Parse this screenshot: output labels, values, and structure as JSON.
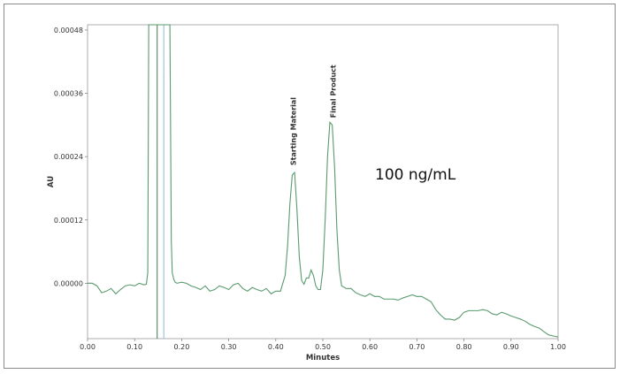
{
  "chart_data": {
    "type": "line",
    "title": "",
    "xlabel": "Minutes",
    "ylabel": "AU",
    "xlim": [
      0.0,
      1.0
    ],
    "ylim": [
      -0.000105,
      0.00049
    ],
    "x_ticks": [
      "0.00",
      "0.10",
      "0.20",
      "0.30",
      "0.40",
      "0.50",
      "0.60",
      "0.70",
      "0.80",
      "0.90",
      "1.00"
    ],
    "y_ticks": [
      {
        "value": 0.0,
        "label": "0.00000"
      },
      {
        "value": 0.00012,
        "label": "0.00012"
      },
      {
        "value": 0.00024,
        "label": "0.00024"
      },
      {
        "value": 0.00036,
        "label": "0.00036"
      },
      {
        "value": 0.00048,
        "label": "0.00048"
      }
    ],
    "annotation": "100 ng/mL",
    "peak_labels": [
      {
        "text": "Starting Material",
        "x": 0.437,
        "y": 0.000215
      },
      {
        "text": "Final Product",
        "x": 0.522,
        "y": 0.000305
      }
    ],
    "line_color": "#5a9a6e",
    "markers": [
      {
        "x": 0.148,
        "color": "#3b7a4d"
      },
      {
        "x": 0.162,
        "color": "#8fb7d2"
      }
    ],
    "series": [
      {
        "x": [
          0.0,
          0.01,
          0.02,
          0.03,
          0.04,
          0.05,
          0.06,
          0.07,
          0.08,
          0.09,
          0.1,
          0.11,
          0.12,
          0.125,
          0.128,
          0.13,
          0.132,
          0.17,
          0.175,
          0.178,
          0.18,
          0.183,
          0.186,
          0.19,
          0.2,
          0.21,
          0.22,
          0.23,
          0.24,
          0.25,
          0.26,
          0.27,
          0.28,
          0.29,
          0.3,
          0.31,
          0.32,
          0.33,
          0.34,
          0.35,
          0.36,
          0.37,
          0.38,
          0.39,
          0.4,
          0.41,
          0.42,
          0.425,
          0.43,
          0.435,
          0.44,
          0.445,
          0.45,
          0.455,
          0.46,
          0.465,
          0.47,
          0.475,
          0.48,
          0.485,
          0.49,
          0.495,
          0.5,
          0.505,
          0.51,
          0.515,
          0.52,
          0.525,
          0.53,
          0.535,
          0.54,
          0.55,
          0.56,
          0.57,
          0.58,
          0.59,
          0.6,
          0.61,
          0.62,
          0.63,
          0.64,
          0.65,
          0.66,
          0.67,
          0.68,
          0.69,
          0.7,
          0.71,
          0.72,
          0.73,
          0.74,
          0.75,
          0.76,
          0.77,
          0.78,
          0.79,
          0.8,
          0.81,
          0.82,
          0.83,
          0.84,
          0.85,
          0.86,
          0.87,
          0.88,
          0.89,
          0.9,
          0.91,
          0.92,
          0.93,
          0.94,
          0.95,
          0.96,
          0.97,
          0.98,
          0.99,
          1.0
        ],
        "y": [
          0.0,
          0.0,
          -5e-06,
          -1.8e-05,
          -1.5e-05,
          -1e-05,
          -2e-05,
          -1.2e-05,
          -5e-06,
          -3e-06,
          -5e-06,
          0.0,
          -3e-06,
          -2e-06,
          2e-05,
          0.00049,
          0.00049,
          0.00049,
          0.00049,
          8e-05,
          2e-05,
          8e-06,
          2e-06,
          0.0,
          2e-06,
          0.0,
          -5e-06,
          -8e-06,
          -1.2e-05,
          -5e-06,
          -1.5e-05,
          -1.2e-05,
          -5e-06,
          -8e-06,
          -1.2e-05,
          -3e-06,
          0.0,
          -1e-05,
          -1.5e-05,
          -8e-06,
          -1.2e-05,
          -1.5e-05,
          -1e-05,
          -2e-05,
          -1.5e-05,
          -1.5e-05,
          1.5e-05,
          7e-05,
          0.00015,
          0.000205,
          0.00021,
          0.00014,
          5e-05,
          5e-06,
          -2e-06,
          1e-05,
          1e-05,
          2.5e-05,
          1.5e-05,
          -5e-06,
          -1.2e-05,
          -1.2e-05,
          2.5e-05,
          0.00012,
          0.00024,
          0.000305,
          0.0003,
          0.00022,
          0.0001,
          2.5e-05,
          -5e-06,
          -1e-05,
          -1e-05,
          -1.8e-05,
          -2.2e-05,
          -2.5e-05,
          -2e-05,
          -2.5e-05,
          -2.5e-05,
          -3e-05,
          -3e-05,
          -3e-05,
          -3.2e-05,
          -2.8e-05,
          -2.5e-05,
          -2.2e-05,
          -2.5e-05,
          -2.5e-05,
          -3e-05,
          -3.5e-05,
          -5e-05,
          -6e-05,
          -6.8e-05,
          -6.8e-05,
          -7e-05,
          -6.5e-05,
          -5.5e-05,
          -5.2e-05,
          -5.2e-05,
          -5.2e-05,
          -5e-05,
          -5.2e-05,
          -5.8e-05,
          -6e-05,
          -5.5e-05,
          -5.8e-05,
          -6.2e-05,
          -6.5e-05,
          -6.8e-05,
          -7.2e-05,
          -7.8e-05,
          -8.2e-05,
          -8.5e-05,
          -9.2e-05,
          -9.8e-05,
          -0.0001,
          -0.000102
        ]
      }
    ]
  }
}
